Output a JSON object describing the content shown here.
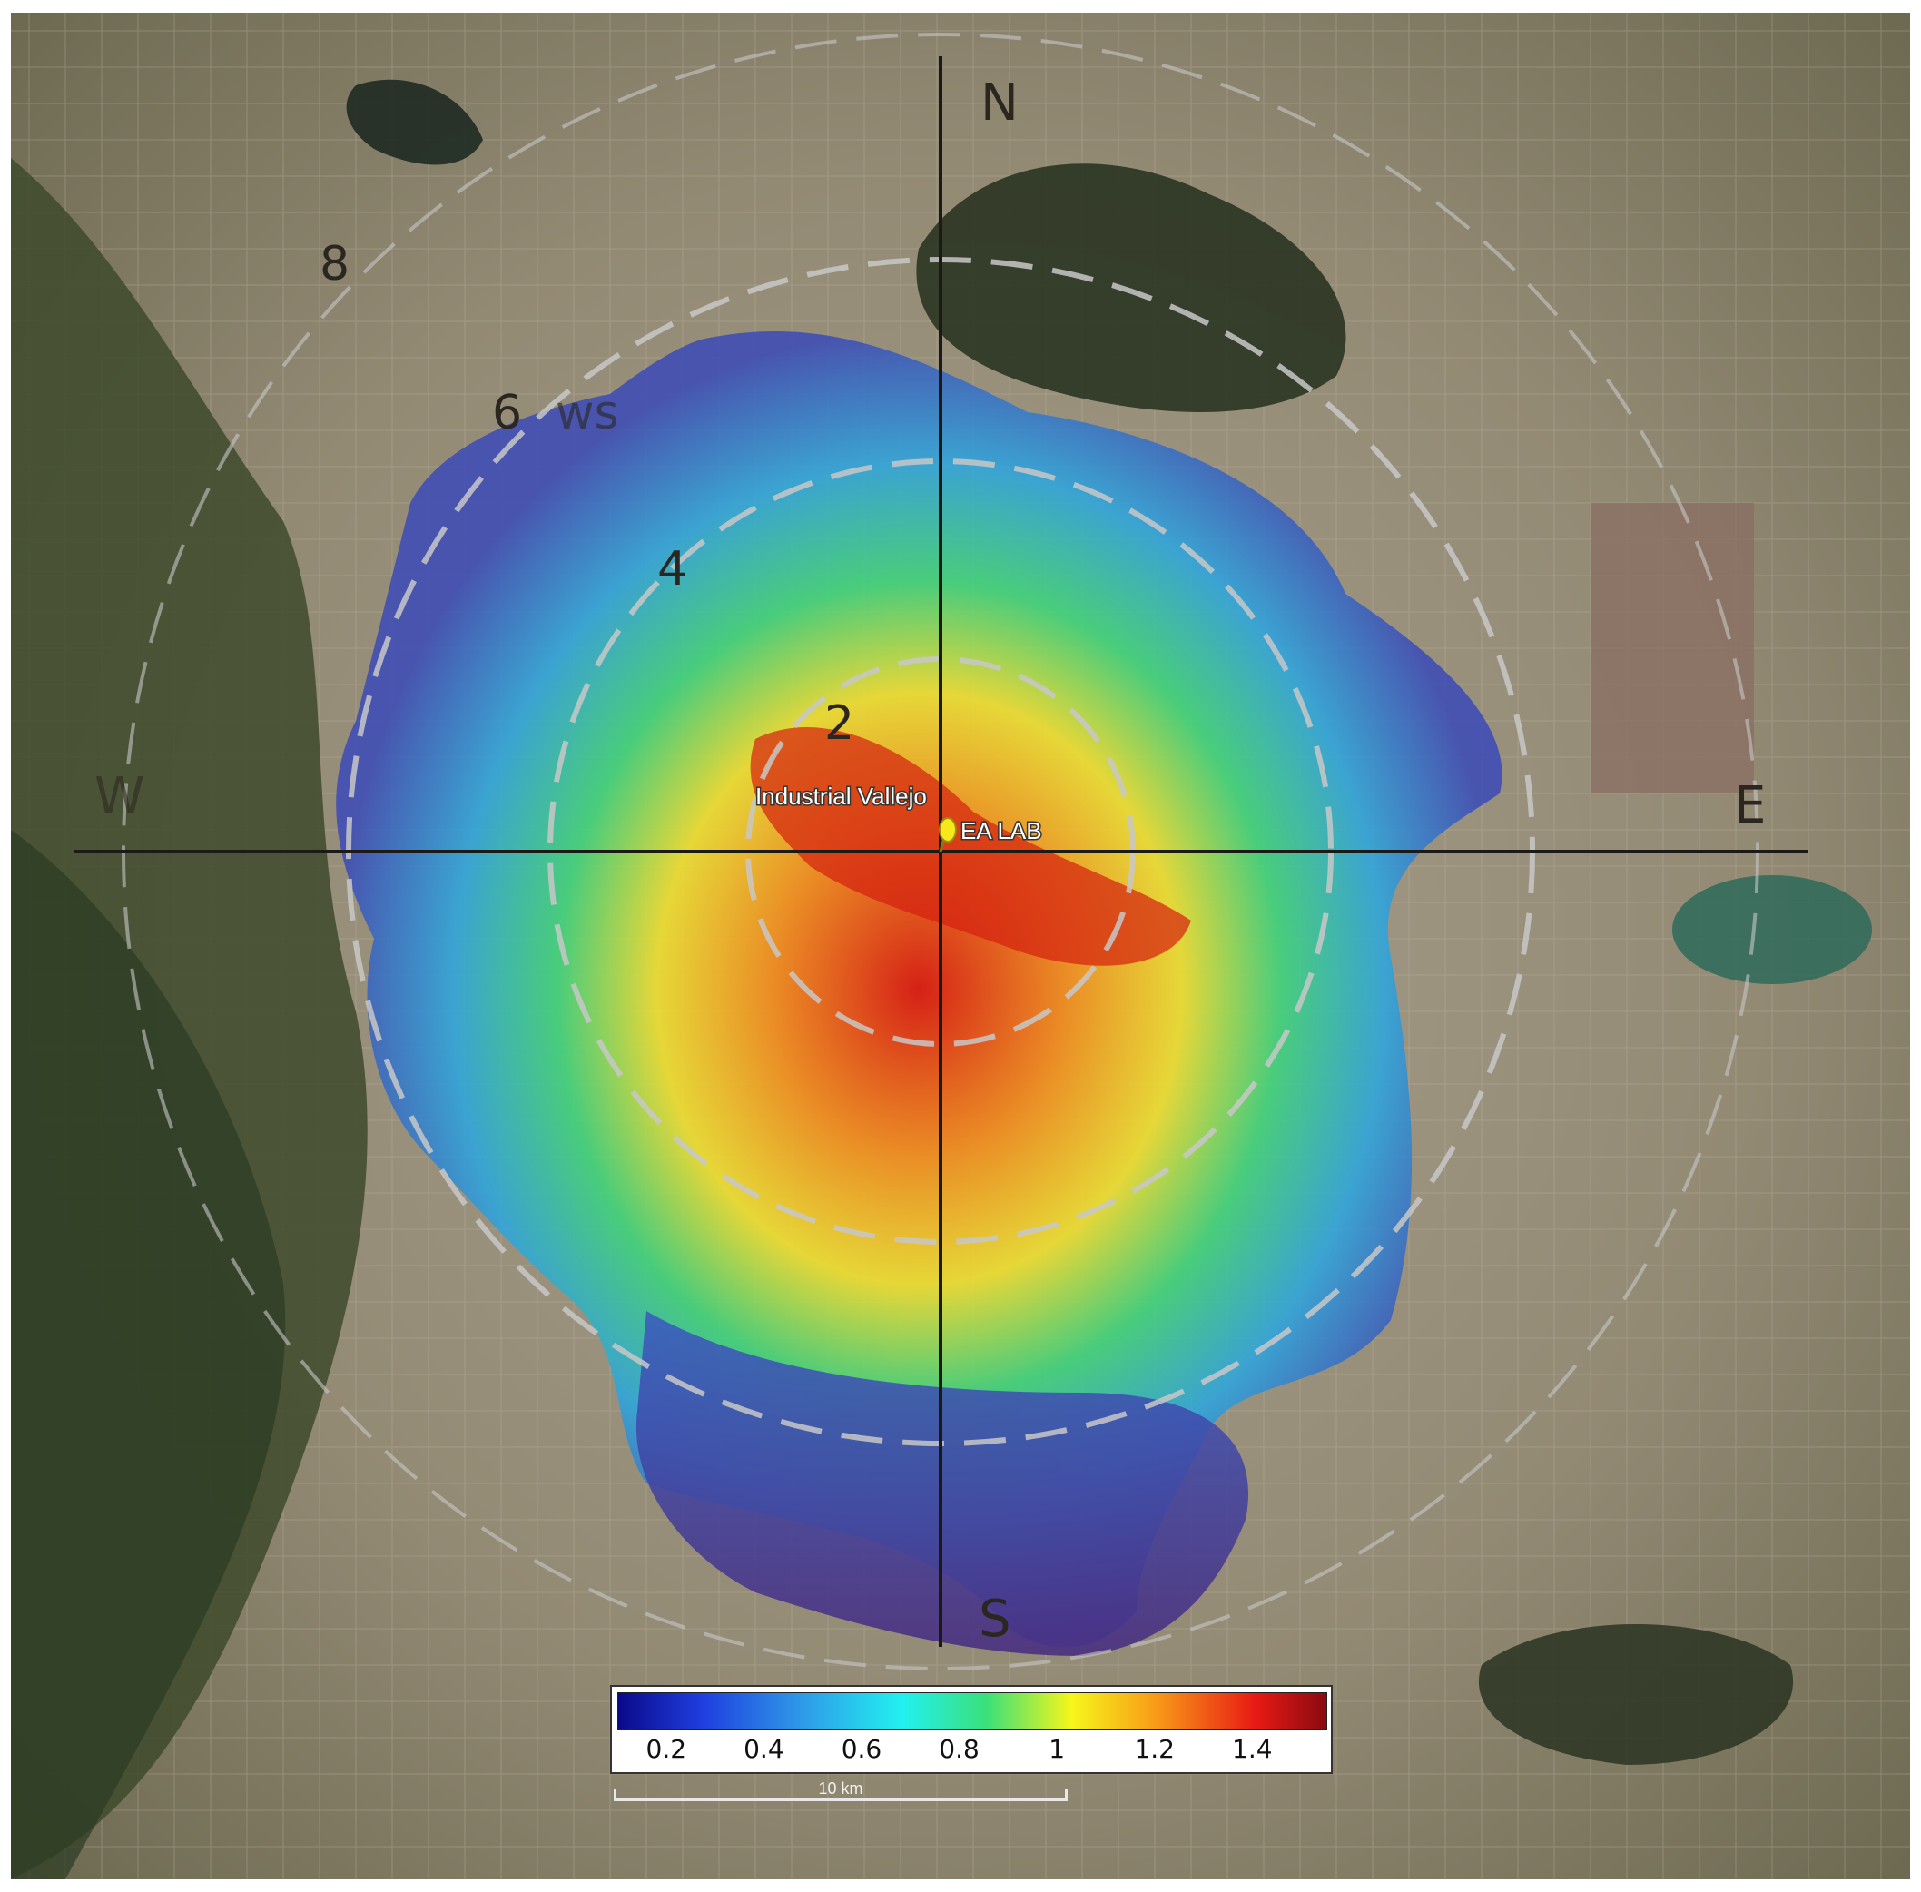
{
  "compass": {
    "north": "N",
    "south": "S",
    "east": "E",
    "west": "W"
  },
  "rings": {
    "r2": "2",
    "r4": "4",
    "r6": "6",
    "r8": "8",
    "ws": "ws"
  },
  "places": {
    "industrial_vallejo": "Industrial Vallejo",
    "ea_lab": "EA LAB"
  },
  "legend": {
    "ticks": [
      "0.2",
      "0.4",
      "0.6",
      "0.8",
      "1",
      "1.2",
      "1.4"
    ],
    "tick_values": [
      0.2,
      0.4,
      0.6,
      0.8,
      1.0,
      1.2,
      1.4
    ],
    "min": 0.1,
    "max": 1.55,
    "colors": [
      "#0a0a8a",
      "#1f3fe0",
      "#2f9ae8",
      "#22f0f0",
      "#3ae07a",
      "#f6f61a",
      "#f89a18",
      "#e81a14",
      "#8a0a10"
    ]
  },
  "scale": {
    "label": "10 km"
  }
}
